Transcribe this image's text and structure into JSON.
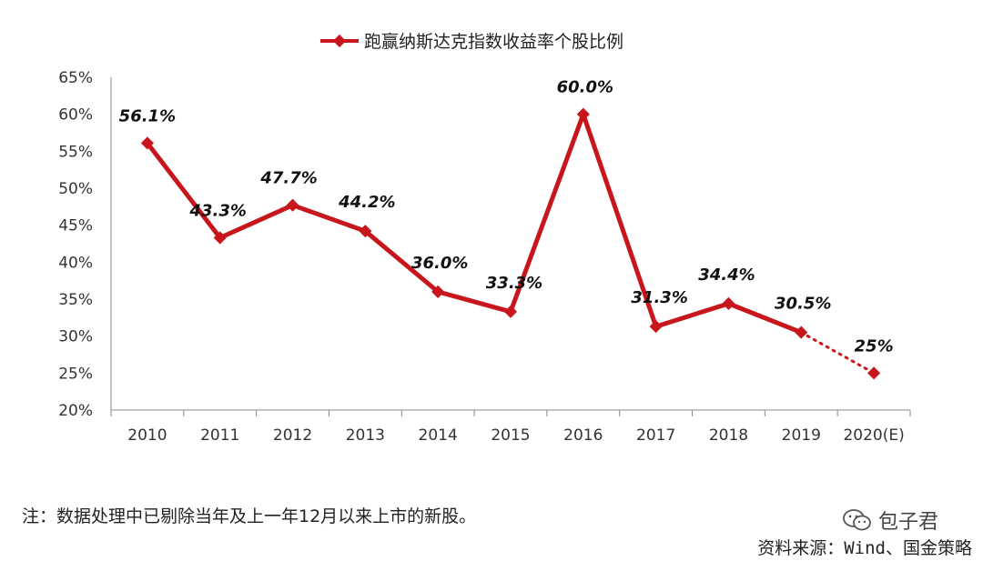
{
  "chart_data": {
    "type": "line",
    "title": "",
    "xlabel": "",
    "ylabel": "",
    "categories": [
      "2010",
      "2011",
      "2012",
      "2013",
      "2014",
      "2015",
      "2016",
      "2017",
      "2018",
      "2019",
      "2020(E)"
    ],
    "series": [
      {
        "name": "跑赢纳斯达克指数收益率个股比例",
        "color": "#c8161d",
        "values": [
          56.1,
          43.3,
          47.7,
          44.2,
          36.0,
          33.3,
          60.0,
          31.3,
          34.4,
          30.5,
          25
        ],
        "value_labels": [
          "56.1%",
          "43.3%",
          "47.7%",
          "44.2%",
          "36.0%",
          "33.3%",
          "60.0%",
          "31.3%",
          "34.4%",
          "30.5%",
          "25%"
        ],
        "projected_from_index": 9
      }
    ],
    "ylim": [
      20,
      65
    ],
    "yticks": [
      "20%",
      "25%",
      "30%",
      "35%",
      "40%",
      "45%",
      "50%",
      "55%",
      "60%",
      "65%"
    ],
    "grid": false,
    "legend_position": "top"
  },
  "note": "注：数据处理中已剔除当年及上一年12月以来上市的新股。",
  "source": "资料来源：Wind、国金策略",
  "watermark": "包子君"
}
